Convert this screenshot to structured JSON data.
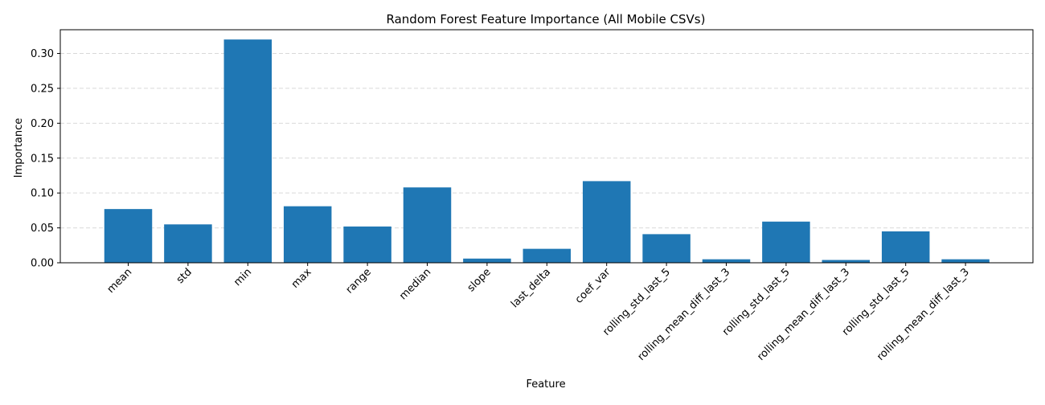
{
  "chart_data": {
    "type": "bar",
    "title": "Random Forest Feature Importance (All Mobile CSVs)",
    "xlabel": "Feature",
    "ylabel": "Importance",
    "categories": [
      "mean",
      "std",
      "min",
      "max",
      "range",
      "median",
      "slope",
      "last_delta",
      "coef_var",
      "rolling_std_last_5",
      "rolling_mean_diff_last_3",
      "rolling_std_last_5",
      "rolling_mean_diff_last_3",
      "rolling_std_last_5",
      "rolling_mean_diff_last_3"
    ],
    "values": [
      0.077,
      0.055,
      0.32,
      0.081,
      0.052,
      0.108,
      0.006,
      0.02,
      0.117,
      0.041,
      0.005,
      0.059,
      0.004,
      0.045,
      0.005
    ],
    "ylim": [
      0,
      0.334
    ],
    "yticks": [
      "0.00",
      "0.05",
      "0.10",
      "0.15",
      "0.20",
      "0.25",
      "0.30"
    ],
    "ytick_values": [
      0,
      0.05,
      0.1,
      0.15,
      0.2,
      0.25,
      0.3
    ],
    "grid": "y-dashed",
    "bar_color": "#1f77b4",
    "grid_color": "#d9d9d9"
  }
}
